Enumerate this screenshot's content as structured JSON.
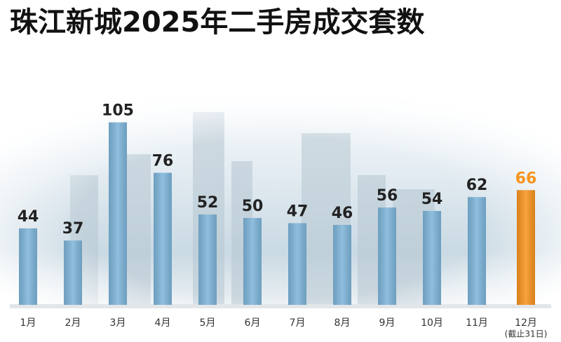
{
  "chart_data": {
    "type": "bar",
    "title": "珠江新城2025年二手房成交套数",
    "categories": [
      "1月",
      "2月",
      "3月",
      "4月",
      "5月",
      "6月",
      "7月",
      "8月",
      "9月",
      "10月",
      "11月",
      "12月"
    ],
    "annotation": "(截止31日)",
    "values": [
      44,
      37,
      105,
      76,
      52,
      50,
      47,
      46,
      56,
      54,
      62,
      66
    ],
    "colors": [
      "#7db4d9",
      "#7db4d9",
      "#7db4d9",
      "#7db4d9",
      "#7db4d9",
      "#7db4d9",
      "#7db4d9",
      "#7db4d9",
      "#7db4d9",
      "#7db4d9",
      "#7db4d9",
      "#f7931e"
    ],
    "label_colors": [
      "#222222",
      "#222222",
      "#222222",
      "#222222",
      "#222222",
      "#222222",
      "#222222",
      "#222222",
      "#222222",
      "#222222",
      "#222222",
      "#f7931e"
    ]
  }
}
